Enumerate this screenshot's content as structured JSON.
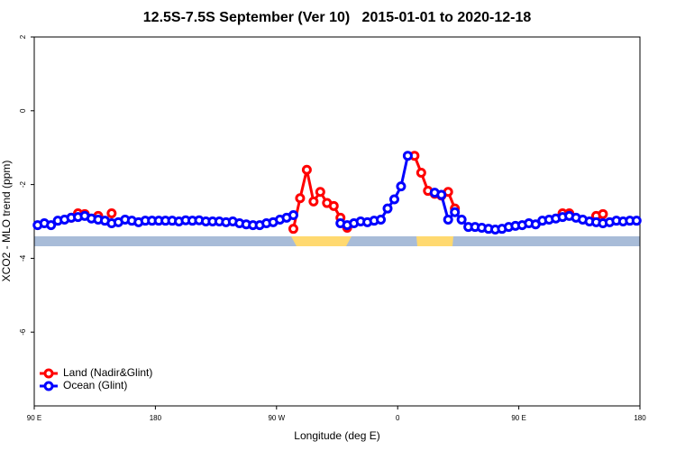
{
  "chart_data": {
    "type": "line",
    "title": "12.5S-7.5S September (Ver 10)   2015-01-01 to 2020-12-18",
    "x_label": "Longitude (deg E)",
    "y_label": "XCO2 - MLO trend (ppm)",
    "xlim": [
      90,
      540
    ],
    "xticks": [
      {
        "value": 90,
        "label": "90 E"
      },
      180,
      {
        "value": 270,
        "label": "90 W"
      },
      {
        "value": 360,
        "label": "0"
      },
      {
        "value": 450,
        "label": "90 E"
      },
      {
        "value": 540,
        "label": "180"
      }
    ],
    "ylim": [
      -8,
      2
    ],
    "yticks": [
      -6,
      -4,
      -2,
      0,
      2
    ],
    "legend": "bottomleft",
    "x": [
      92.5,
      97.5,
      102.5,
      107.5,
      112.5,
      117.5,
      122.5,
      127.5,
      132.5,
      137.5,
      142.5,
      147.5,
      152.5,
      157.5,
      162.5,
      167.5,
      172.5,
      177.5,
      182.5,
      187.5,
      192.5,
      197.5,
      202.5,
      207.5,
      212.5,
      217.5,
      222.5,
      227.5,
      232.5,
      237.5,
      242.5,
      247.5,
      252.5,
      257.5,
      262.5,
      267.5,
      272.5,
      277.5,
      282.5,
      287.5,
      292.5,
      297.5,
      302.5,
      307.5,
      312.5,
      317.5,
      322.5,
      327.5,
      332.5,
      337.5,
      342.5,
      347.5,
      352.5,
      357.5,
      362.5,
      367.5,
      372.5,
      377.5,
      382.5,
      387.5,
      392.5,
      397.5,
      402.5,
      407.5,
      412.5,
      417.5,
      422.5,
      427.5,
      432.5,
      437.5,
      442.5,
      447.5,
      452.5,
      457.5,
      462.5,
      467.5,
      472.5,
      477.5,
      482.5,
      487.5,
      492.5,
      497.5,
      502.5,
      507.5,
      512.5,
      517.5,
      522.5,
      527.5,
      532.5,
      537.5
    ],
    "series": [
      {
        "name": "Land (Nadir&Glint)",
        "color": "#ff0000",
        "values": [
          null,
          null,
          null,
          null,
          null,
          -2.9,
          -2.78,
          -2.8,
          null,
          -2.85,
          null,
          -2.78,
          null,
          null,
          null,
          null,
          null,
          null,
          null,
          null,
          null,
          null,
          null,
          null,
          null,
          null,
          null,
          null,
          null,
          null,
          null,
          null,
          null,
          null,
          null,
          null,
          null,
          null,
          -3.2,
          -2.37,
          -1.6,
          -2.46,
          -2.2,
          -2.5,
          -2.58,
          -2.9,
          -3.17,
          null,
          null,
          null,
          null,
          null,
          null,
          null,
          null,
          null,
          -1.22,
          -1.68,
          -2.17,
          -2.25,
          -2.3,
          -2.2,
          -2.65,
          null,
          null,
          null,
          null,
          null,
          null,
          null,
          null,
          null,
          null,
          null,
          null,
          null,
          null,
          null,
          -2.78,
          -2.78,
          null,
          null,
          null,
          -2.85,
          -2.8,
          null,
          null,
          null,
          null,
          null
        ]
      },
      {
        "name": "Ocean (Glint)",
        "color": "#0000ff",
        "values": [
          -3.1,
          -3.05,
          -3.1,
          -2.98,
          -2.95,
          -2.9,
          -2.88,
          -2.85,
          -2.92,
          -2.95,
          -2.98,
          -3.05,
          -3.02,
          -2.95,
          -2.98,
          -3.02,
          -2.98,
          -2.98,
          -2.98,
          -2.98,
          -2.98,
          -3.0,
          -2.97,
          -2.98,
          -2.97,
          -3.0,
          -3.0,
          -3.0,
          -3.02,
          -3.0,
          -3.05,
          -3.08,
          -3.1,
          -3.1,
          -3.05,
          -3.02,
          -2.95,
          -2.9,
          -2.83,
          null,
          null,
          null,
          null,
          null,
          null,
          -3.05,
          -3.1,
          -3.05,
          -3.0,
          -3.02,
          -2.98,
          -2.95,
          -2.65,
          -2.4,
          -2.05,
          -1.22,
          null,
          null,
          null,
          -2.22,
          -2.28,
          -2.95,
          -2.75,
          -2.95,
          -3.15,
          -3.15,
          -3.17,
          -3.2,
          -3.22,
          -3.2,
          -3.15,
          -3.12,
          -3.1,
          -3.05,
          -3.08,
          -2.98,
          -2.95,
          -2.92,
          -2.88,
          -2.85,
          -2.9,
          -2.95,
          -3.0,
          -3.02,
          -3.05,
          -3.02,
          -2.98,
          -3.0,
          -2.98,
          -2.98
        ]
      }
    ]
  }
}
